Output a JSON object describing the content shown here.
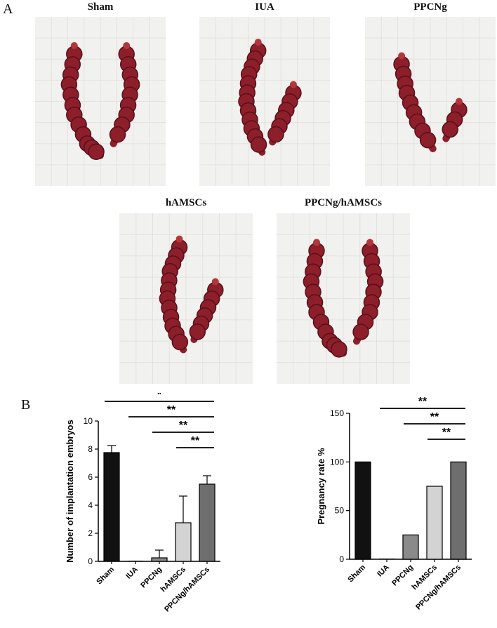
{
  "panels": {
    "a_label": "A",
    "b_label": "B"
  },
  "photos": [
    {
      "title": "Sham",
      "shape": "u"
    },
    {
      "title": "IUA",
      "shape": "v-left"
    },
    {
      "title": "PPCNg",
      "shape": "v-short"
    },
    {
      "title": "hAMSCs",
      "shape": "v-left"
    },
    {
      "title": "PPCNg/hAMSCs",
      "shape": "u"
    }
  ],
  "colors": {
    "gauze": "#f1f1ef",
    "uterus": "#8c1f2a",
    "uterus_dark": "#5a0f1a",
    "bar_sham": "#111111",
    "bar_iua": "#111111",
    "bar_ppcng": "#8a8a8a",
    "bar_hamscs": "#d3d3d3",
    "bar_combo": "#6e6e6e"
  },
  "chart_data": [
    {
      "type": "bar",
      "categories": [
        "Sham",
        "IUA",
        "PPCNg",
        "hAMSCs",
        "PPCNg/hAMSCs"
      ],
      "values": [
        7.75,
        0,
        0.25,
        2.75,
        5.5
      ],
      "errors": [
        0.5,
        0,
        0.55,
        1.9,
        0.6
      ],
      "ylabel": "Number of implantation embryos",
      "ylim": [
        0,
        10
      ],
      "yticks": [
        "0",
        "2",
        "4",
        "6",
        "8",
        "10"
      ],
      "significance": [
        {
          "from": "Sham",
          "to": "PPCNg/hAMSCs",
          "label": "*"
        },
        {
          "from": "IUA",
          "to": "PPCNg/hAMSCs",
          "label": "**"
        },
        {
          "from": "PPCNg",
          "to": "PPCNg/hAMSCs",
          "label": "**"
        },
        {
          "from": "hAMSCs",
          "to": "PPCNg/hAMSCs",
          "label": "**"
        }
      ]
    },
    {
      "type": "bar",
      "categories": [
        "Sham",
        "IUA",
        "PPCNg",
        "hAMSCs",
        "PPCNg/hAMSCs"
      ],
      "values": [
        100,
        0,
        25,
        75,
        100
      ],
      "ylabel": "Pregnancy rate %",
      "ylim": [
        0,
        150
      ],
      "yticks": [
        "0",
        "50",
        "100",
        "150"
      ],
      "significance": [
        {
          "from": "IUA",
          "to": "PPCNg/hAMSCs",
          "label": "**"
        },
        {
          "from": "PPCNg",
          "to": "PPCNg/hAMSCs",
          "label": "**"
        },
        {
          "from": "hAMSCs",
          "to": "PPCNg/hAMSCs",
          "label": "**"
        }
      ]
    }
  ]
}
